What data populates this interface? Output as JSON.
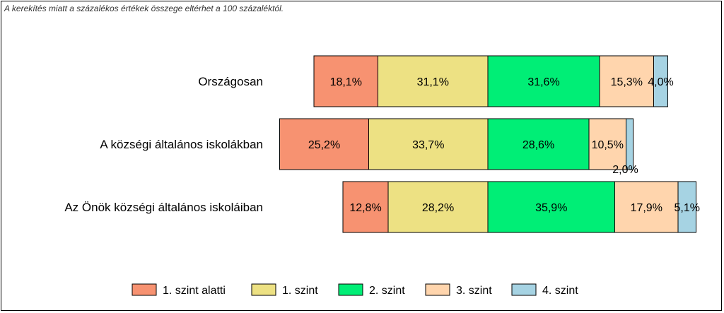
{
  "note": "A kerekítés miatt a  százalékos értékek összege eltérhet a 100 százaléktól.",
  "chart_data": {
    "type": "bar",
    "orientation": "horizontal",
    "stacked": true,
    "categories": [
      "Országosan",
      "A községi általános iskolákban",
      "Az Önök községi általános iskoláiban"
    ],
    "series": [
      {
        "name": "1. szint alatti",
        "color": "#F79271",
        "values": [
          18.1,
          25.2,
          12.8
        ],
        "labels": [
          "18,1%",
          "25,2%",
          "12,8%"
        ]
      },
      {
        "name": "1. szint",
        "color": "#EDE183",
        "values": [
          31.1,
          33.7,
          28.2
        ],
        "labels": [
          "31,1%",
          "33,7%",
          "28,2%"
        ]
      },
      {
        "name": "2. szint",
        "color": "#00EE76",
        "values": [
          31.6,
          28.6,
          35.9
        ],
        "labels": [
          "31,6%",
          "28,6%",
          "35,9%"
        ]
      },
      {
        "name": "3. szint",
        "color": "#FFD5AD",
        "values": [
          15.3,
          10.5,
          17.9
        ],
        "labels": [
          "15,3%",
          "10,5%",
          "17,9%"
        ]
      },
      {
        "name": "4. szint",
        "color": "#A6D3E3",
        "values": [
          4.0,
          2.0,
          5.1
        ],
        "labels": [
          "4,0%",
          "2,0%",
          "5,1%"
        ]
      }
    ],
    "alignment": "bars aligned at the boundary between 1. szint and 2. szint",
    "legend_position": "bottom",
    "grid": false
  }
}
